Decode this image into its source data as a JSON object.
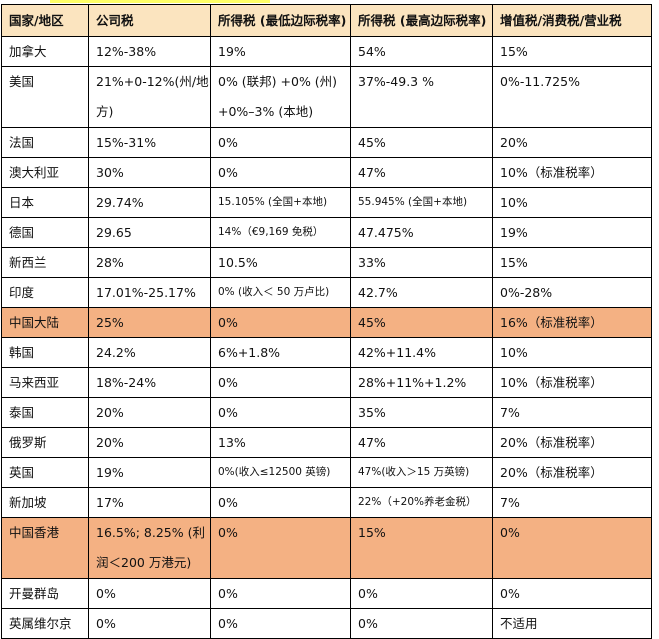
{
  "headers": [
    "国家/地区",
    "公司税",
    "所得税 (最低边际税率)",
    "所得税 (最高边际税率)",
    "增值税/消费税/营业税"
  ],
  "highlight_color": "#f4b183",
  "header_color": "#fbe4bf",
  "rows": [
    {
      "cells": [
        "加拿大",
        "12%-38%",
        "19%",
        "54%",
        "15%"
      ]
    },
    {
      "cells": [
        "美国",
        "21%+0-12%(州/地方)",
        "0% (联邦) +0% (州) +0%–3% (本地)",
        "37%-49.3 %",
        "0%-11.725%"
      ],
      "tall": true
    },
    {
      "cells": [
        "法国",
        "15%-31%",
        "0%",
        "45%",
        "20%"
      ]
    },
    {
      "cells": [
        "澳大利亚",
        "30%",
        "0%",
        "47%",
        "10%（标准税率）"
      ]
    },
    {
      "cells": [
        "日本",
        "29.74%",
        "15.105% (全国+本地)",
        "55.945% (全国+本地)",
        "10%"
      ]
    },
    {
      "cells": [
        "德国",
        "29.65",
        "14%（€9,169 免税）",
        "47.475%",
        "19%"
      ]
    },
    {
      "cells": [
        "新西兰",
        "28%",
        "10.5%",
        "33%",
        "15%"
      ]
    },
    {
      "cells": [
        "印度",
        "17.01%-25.17%",
        "0% (收入＜ 50 万卢比)",
        "42.7%",
        "0%-28%"
      ]
    },
    {
      "cells": [
        "中国大陆",
        "25%",
        "0%",
        "45%",
        "16%（标准税率）"
      ],
      "highlight": true
    },
    {
      "cells": [
        "韩国",
        "24.2%",
        "6%+1.8%",
        "42%+11.4%",
        "10%"
      ]
    },
    {
      "cells": [
        "马来西亚",
        "18%-24%",
        "0%",
        "28%+11%+1.2%",
        "10%（标准税率）"
      ]
    },
    {
      "cells": [
        "泰国",
        "20%",
        "0%",
        "35%",
        "7%"
      ]
    },
    {
      "cells": [
        "俄罗斯",
        "20%",
        "13%",
        "47%",
        "20%（标准税率）"
      ]
    },
    {
      "cells": [
        "英国",
        "19%",
        "0%(收入≤12500 英镑)",
        "47%(收入＞15 万英镑)",
        "20%（标准税率）"
      ]
    },
    {
      "cells": [
        "新加坡",
        "17%",
        "0%",
        "22%（+20%养老金税）",
        "7%"
      ]
    },
    {
      "cells": [
        "中国香港",
        "16.5%; 8.25% (利润＜200 万港元)",
        "0%",
        "15%",
        "0%"
      ],
      "tall": true,
      "highlight": true
    },
    {
      "cells": [
        "开曼群岛",
        "0%",
        "0%",
        "0%",
        "0%"
      ]
    },
    {
      "cells": [
        "英属维尔京",
        "0%",
        "0%",
        "0%",
        "不适用"
      ]
    }
  ]
}
